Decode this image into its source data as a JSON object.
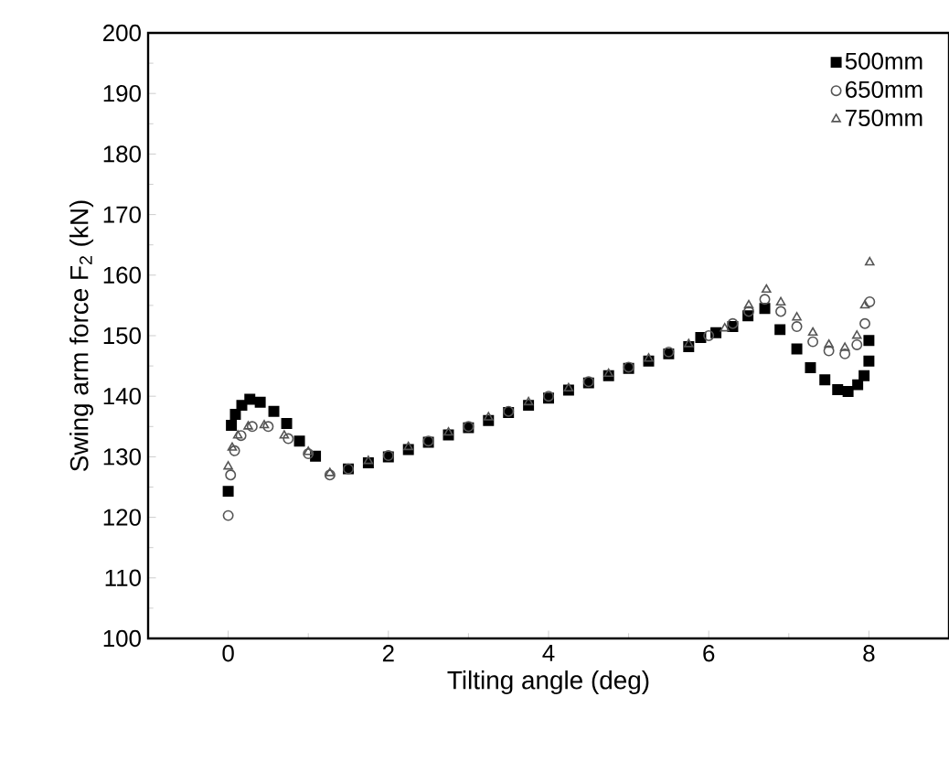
{
  "chart_data": {
    "type": "scatter",
    "xlabel": "Tilting angle (deg)",
    "ylabel": "Swing arm force F$_{2}$ (kN)",
    "xlim": [
      -1,
      9
    ],
    "ylim": [
      100,
      200
    ],
    "xticks": [
      0,
      2,
      4,
      6,
      8
    ],
    "yticks": [
      100,
      110,
      120,
      130,
      140,
      150,
      160,
      170,
      180,
      190,
      200
    ],
    "grid": false,
    "legend": "top right",
    "series": [
      {
        "name": "500mm",
        "color": "#000000",
        "marker": "square",
        "x": [
          0,
          0.04,
          0.09,
          0.17,
          0.27,
          0.4,
          0.57,
          0.73,
          0.89,
          1.09,
          1.27,
          1.5,
          1.75,
          2.0,
          2.25,
          2.5,
          2.75,
          3.0,
          3.25,
          3.5,
          3.75,
          4.0,
          4.25,
          4.5,
          4.75,
          5.0,
          5.25,
          5.5,
          5.75,
          5.9,
          6.09,
          6.3,
          6.49,
          6.7,
          6.89,
          7.1,
          7.27,
          7.45,
          7.61,
          7.74,
          7.86,
          7.94,
          8.0,
          8.0
        ],
        "values": [
          124.3,
          135.2,
          137,
          138.5,
          139.5,
          139,
          137.5,
          135.5,
          132.6,
          130.1,
          null,
          128,
          129,
          130,
          131.2,
          132.4,
          133.6,
          134.8,
          136,
          137.3,
          138.5,
          139.7,
          141,
          142.2,
          143.4,
          144.6,
          145.8,
          147,
          148.2,
          149.7,
          150.5,
          151.5,
          153.3,
          154.5,
          151,
          147.8,
          144.7,
          142.7,
          141.1,
          140.8,
          141.9,
          143.4,
          145.8,
          149.2
        ]
      },
      {
        "name": "650mm",
        "color": "#555555",
        "marker": "circle",
        "x": [
          0,
          0.03,
          0.08,
          0.16,
          0.3,
          0.5,
          0.75,
          1.0,
          1.27,
          1.5,
          2.0,
          2.5,
          3.0,
          3.5,
          4.0,
          4.5,
          5.0,
          5.5,
          6.0,
          6.3,
          6.5,
          6.7,
          6.9,
          7.1,
          7.3,
          7.5,
          7.7,
          7.85,
          7.95,
          8.01
        ],
        "values": [
          120.3,
          127,
          131,
          133.5,
          135,
          135,
          133,
          130.5,
          127,
          128,
          130.2,
          132.6,
          135,
          137.5,
          140,
          142.4,
          144.8,
          147.3,
          150,
          152,
          154,
          156,
          154,
          151.5,
          149,
          147.5,
          147,
          148.5,
          152,
          155.6
        ]
      },
      {
        "name": "750mm",
        "color": "#555555",
        "marker": "triangle",
        "x": [
          0,
          0.05,
          0.12,
          0.25,
          0.45,
          0.7,
          1.0,
          1.27,
          1.75,
          2.25,
          2.75,
          3.25,
          3.75,
          4.25,
          4.75,
          5.25,
          5.75,
          6.2,
          6.5,
          6.72,
          6.9,
          7.1,
          7.3,
          7.5,
          7.7,
          7.85,
          7.95,
          8.01
        ],
        "values": [
          128.4,
          131.5,
          133.5,
          135,
          135.2,
          133.5,
          130.8,
          127.3,
          129.3,
          131.6,
          134,
          136.5,
          139,
          141.3,
          143.7,
          146.2,
          148.6,
          151.2,
          155,
          157.6,
          155.5,
          153,
          150.5,
          148.5,
          148,
          150,
          155,
          162.1
        ]
      }
    ]
  }
}
